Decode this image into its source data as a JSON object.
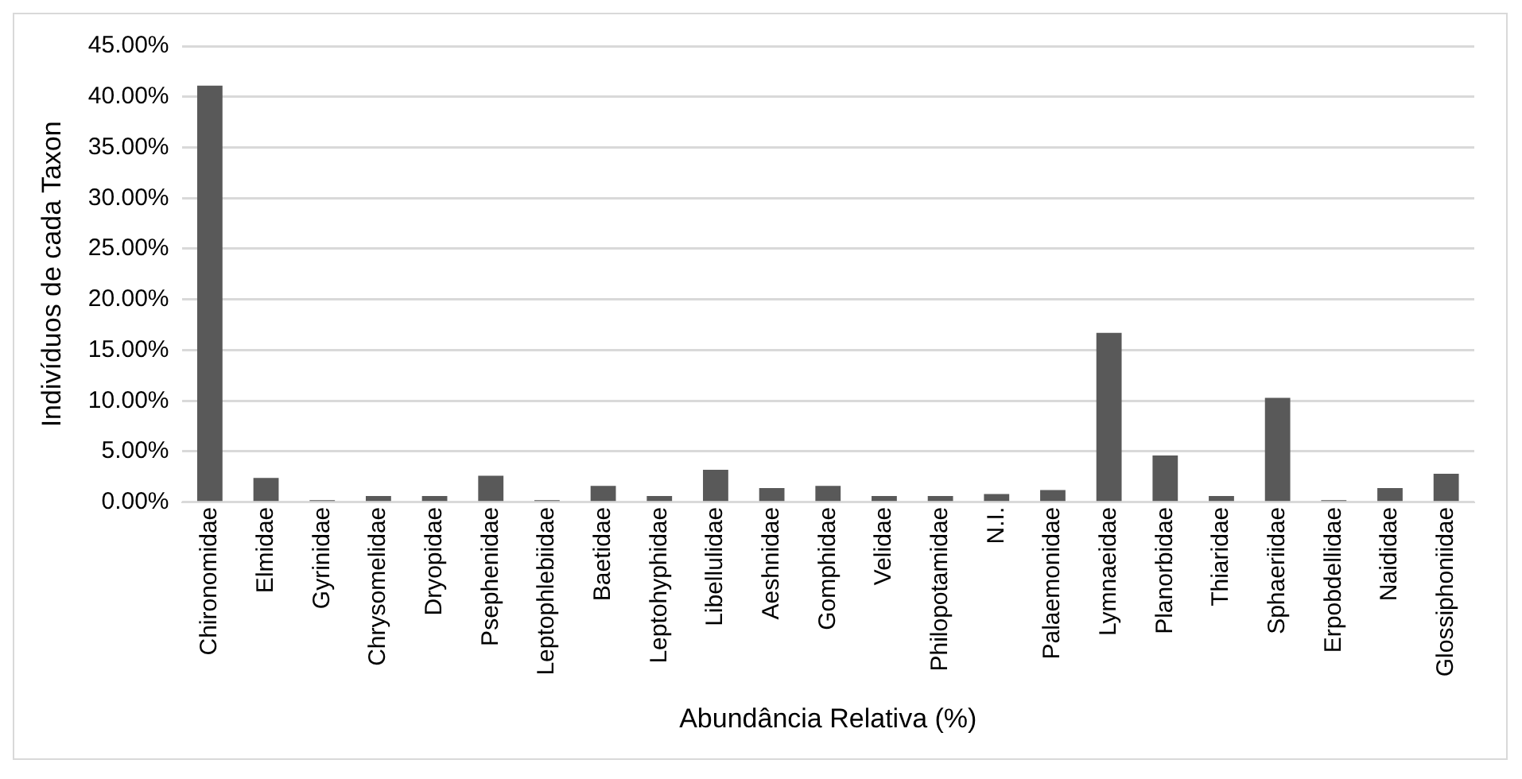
{
  "chart_data": {
    "type": "bar",
    "xlabel": "Abundância Relativa (%)",
    "ylabel": "Indivíduos de cada Taxon",
    "categories": [
      "Chironomidae",
      "Elmidae",
      "Gyrinidae",
      "Chrysomelidae",
      "Dryopidae",
      "Psephenidae",
      "Leptophlebiidae",
      "Baetidae",
      "Leptohyphidae",
      "Libellulidae",
      "Aeshnidae",
      "Gomphidae",
      "Velidae",
      "Philopotamidae",
      "N.I.",
      "Palaemonidae",
      "Lymnaeidae",
      "Planorbidae",
      "Thiaridae",
      "Sphaeriidae",
      "Erpobdellidae",
      "Naididae",
      "Glossiphoniidae"
    ],
    "values": [
      41.1,
      2.4,
      0.2,
      0.6,
      0.6,
      2.6,
      0.2,
      1.6,
      0.6,
      3.2,
      1.4,
      1.6,
      0.6,
      0.6,
      0.8,
      1.2,
      16.7,
      4.6,
      0.6,
      10.3,
      0.2,
      1.4,
      2.8
    ],
    "color": "#595959",
    "ylim": [
      0,
      45
    ],
    "yticks": [
      {
        "value": 0,
        "label": "0.00%"
      },
      {
        "value": 5,
        "label": "5.00%"
      },
      {
        "value": 10,
        "label": "10.00%"
      },
      {
        "value": 15,
        "label": "15.00%"
      },
      {
        "value": 20,
        "label": "20.00%"
      },
      {
        "value": 25,
        "label": "25.00%"
      },
      {
        "value": 30,
        "label": "30.00%"
      },
      {
        "value": 35,
        "label": "35.00%"
      },
      {
        "value": 40,
        "label": "40.00%"
      },
      {
        "value": 45,
        "label": "45.00%"
      }
    ],
    "grid": "y",
    "legend": false
  }
}
